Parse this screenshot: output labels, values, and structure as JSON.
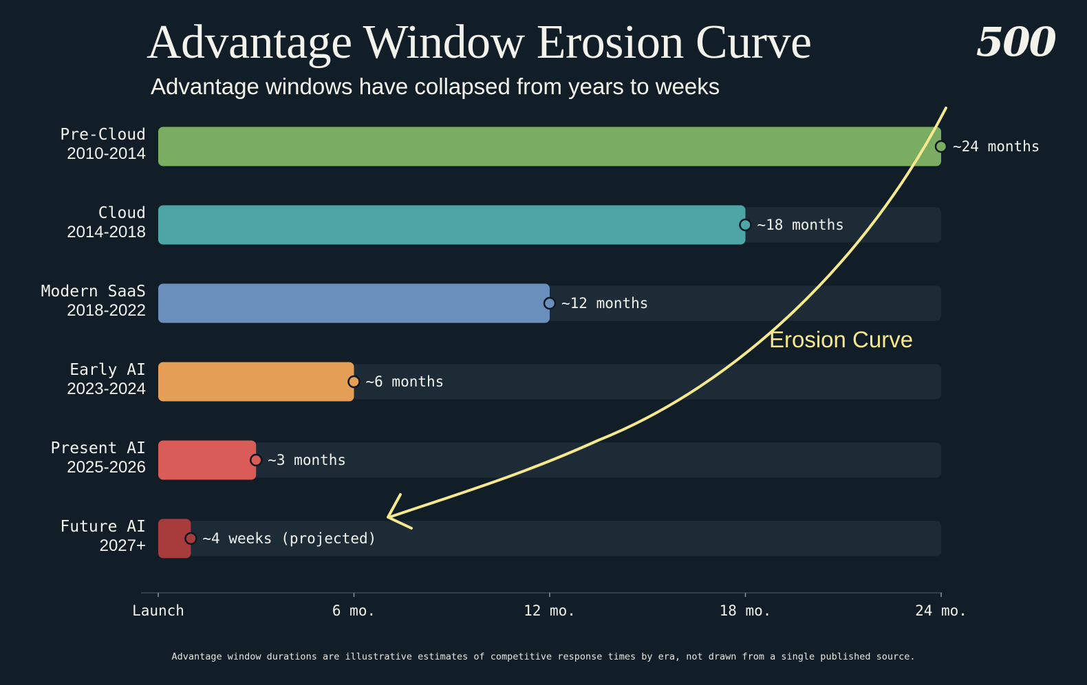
{
  "header": {
    "title": "Advantage Window Erosion Curve",
    "subtitle": "Advantage windows have collapsed from years to weeks",
    "logo": "500"
  },
  "footnote": "Advantage window durations are illustrative estimates of competitive response times by era, not drawn from a single published source.",
  "colors": {
    "background": "#111e27",
    "track": "#1d2b36",
    "curve": "#f5e88f",
    "text": "#f2f2ec"
  },
  "chart_data": {
    "type": "bar",
    "orientation": "horizontal",
    "title": "Advantage Window Erosion Curve",
    "subtitle": "Advantage windows have collapsed from years to weeks",
    "xlabel": "",
    "ylabel": "",
    "xlim": [
      0,
      24
    ],
    "x_unit": "months",
    "grid": false,
    "legend": "none",
    "ticks": [
      {
        "value": 0,
        "label": "Launch"
      },
      {
        "value": 6,
        "label": "6 mo."
      },
      {
        "value": 12,
        "label": "12 mo."
      },
      {
        "value": 18,
        "label": "18 mo."
      },
      {
        "value": 24,
        "label": "24 mo."
      }
    ],
    "bars": [
      {
        "era": "Pre-Cloud",
        "years": "2010-2014",
        "value": 24,
        "label": "~24 months",
        "color": "#7aad62"
      },
      {
        "era": "Cloud",
        "years": "2014-2018",
        "value": 18,
        "label": "~18 months",
        "color": "#4ea5a6"
      },
      {
        "era": "Modern SaaS",
        "years": "2018-2022",
        "value": 12,
        "label": "~12 months",
        "color": "#6b8fbd"
      },
      {
        "era": "Early AI",
        "years": "2023-2024",
        "value": 6,
        "label": "~6 months",
        "color": "#e49e55"
      },
      {
        "era": "Present AI",
        "years": "2025-2026",
        "value": 3,
        "label": "~3 months",
        "color": "#d95c58"
      },
      {
        "era": "Future AI",
        "years": "2027+",
        "value": 1,
        "label": "~4 weeks (projected)",
        "color": "#a83c3c"
      }
    ],
    "annotation": {
      "text": "Erosion Curve",
      "color": "#f5e88f"
    }
  }
}
